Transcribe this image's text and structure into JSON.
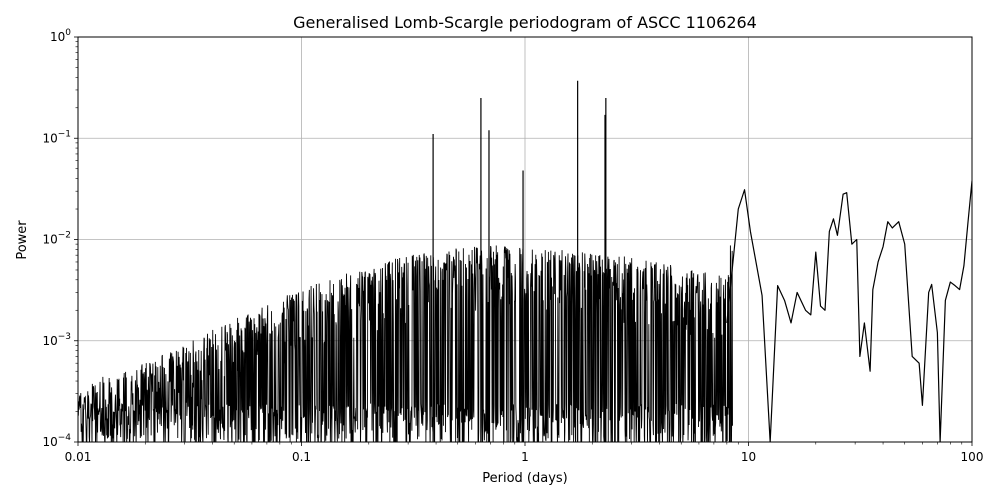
{
  "chart_data": {
    "type": "line",
    "title": "Generalised Lomb-Scargle periodogram of ASCC 1106264",
    "xlabel": "Period (days)",
    "ylabel": "Power",
    "xscale": "log",
    "yscale": "log",
    "xlim": [
      0.01,
      100
    ],
    "ylim": [
      0.0001,
      1
    ],
    "grid": true,
    "line_color": "#000000",
    "x_ticks": [
      {
        "value": 0.01,
        "label": "0.01"
      },
      {
        "value": 0.1,
        "label": "0.1"
      },
      {
        "value": 1,
        "label": "1"
      },
      {
        "value": 10,
        "label": "10"
      },
      {
        "value": 100,
        "label": "100"
      }
    ],
    "y_ticks": [
      {
        "value": 0.0001,
        "base": "10",
        "exp": "−4"
      },
      {
        "value": 0.001,
        "base": "10",
        "exp": "−3"
      },
      {
        "value": 0.01,
        "base": "10",
        "exp": "−2"
      },
      {
        "value": 0.1,
        "base": "10",
        "exp": "−1"
      },
      {
        "value": 1,
        "base": "10",
        "exp": "0"
      }
    ],
    "peaks": [
      {
        "x": 0.388,
        "y": 0.11
      },
      {
        "x": 0.635,
        "y": 0.25
      },
      {
        "x": 0.69,
        "y": 0.12
      },
      {
        "x": 0.98,
        "y": 0.048
      },
      {
        "x": 1.72,
        "y": 0.37
      },
      {
        "x": 2.3,
        "y": 0.25
      },
      {
        "x": 2.28,
        "y": 0.17
      }
    ],
    "series": [
      {
        "x": [
          0.01,
          0.013,
          0.018,
          0.025,
          0.035,
          0.05,
          0.07,
          0.1,
          0.15,
          0.2,
          0.3,
          0.5,
          0.8,
          1.0,
          1.5,
          2.0,
          3.0,
          5.0,
          8.0,
          9.0,
          9.6,
          10.2,
          11.5,
          12.5,
          13.5,
          14.5,
          15.5,
          16.5,
          18.0,
          19.0,
          20.0,
          21.0,
          22.0,
          23.0,
          24.0,
          25.0,
          26.5,
          27.5,
          29.0,
          30.5,
          31.5,
          33.0,
          35.0,
          36.0,
          38.0,
          40.0,
          42.0,
          44.0,
          47.0,
          50.0,
          54.0,
          58.0,
          60.0,
          64.0,
          66.0,
          70.0,
          72.0,
          76.0,
          80.0,
          84.0,
          88.0,
          92.0,
          96.0,
          100.0
        ],
        "y": [
          0.00012,
          0.00016,
          0.0002,
          0.00028,
          0.0004,
          0.0006,
          0.0008,
          0.0012,
          0.0016,
          0.002,
          0.0025,
          0.003,
          0.0032,
          0.003,
          0.0028,
          0.0026,
          0.0024,
          0.002,
          0.0015,
          0.02,
          0.031,
          0.012,
          0.0028,
          0.0001,
          0.0035,
          0.0025,
          0.0015,
          0.003,
          0.002,
          0.0018,
          0.0075,
          0.0022,
          0.002,
          0.012,
          0.016,
          0.011,
          0.028,
          0.029,
          0.009,
          0.01,
          0.0007,
          0.0015,
          0.0005,
          0.0032,
          0.006,
          0.0085,
          0.015,
          0.013,
          0.015,
          0.009,
          0.0007,
          0.0006,
          0.00023,
          0.003,
          0.0036,
          0.0012,
          0.0001,
          0.0025,
          0.0038,
          0.0035,
          0.0032,
          0.0055,
          0.015,
          0.038
        ]
      }
    ]
  }
}
